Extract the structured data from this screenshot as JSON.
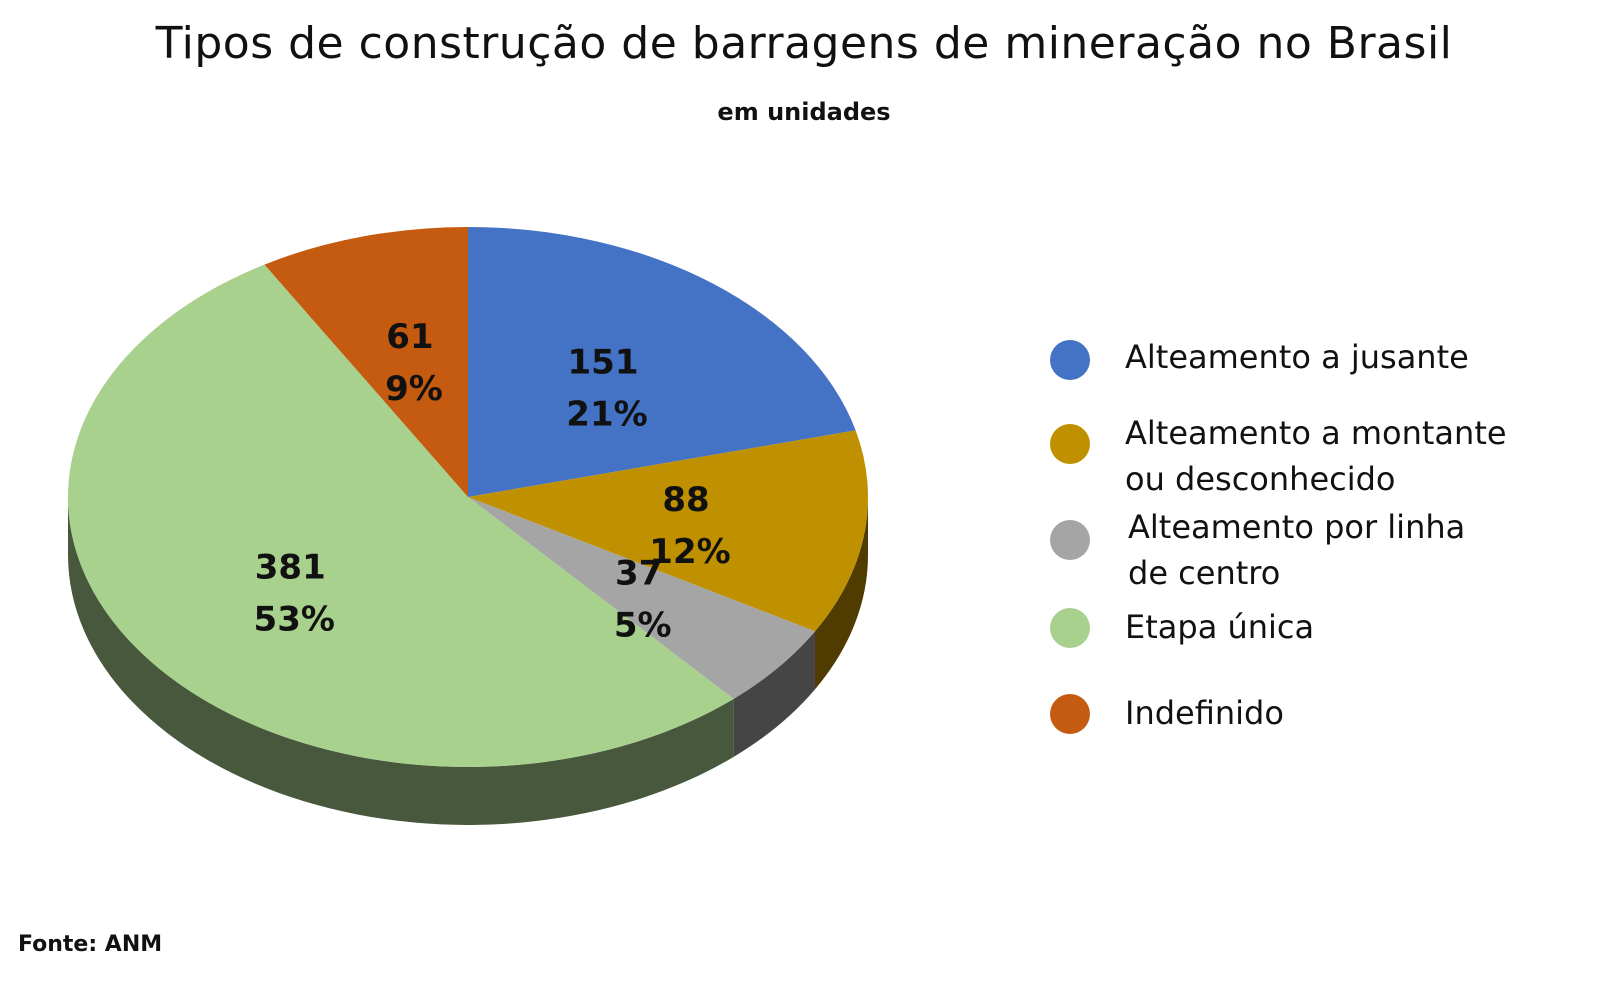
{
  "chart_data": {
    "type": "pie",
    "title": "Tipos de construção de barragens de mineração no Brasil",
    "subtitle": "em unidades",
    "source": "Fonte: ANM",
    "legend_position": "right",
    "slices": [
      {
        "name": "Alteamento a jusante",
        "value": 151,
        "percent_label": "21%",
        "color": "#4472C4"
      },
      {
        "name": "Alteamento a montante ou desconhecido",
        "value": 88,
        "percent_label": "12%",
        "color": "#BF9000"
      },
      {
        "name": "Alteamento por linha de centro",
        "value": 37,
        "percent_label": "5%",
        "color": "#A5A5A5"
      },
      {
        "name": "Etapa única",
        "value": 381,
        "percent_label": "53%",
        "color": "#A9D18E"
      },
      {
        "name": "Indefinido",
        "value": 61,
        "percent_label": "9%",
        "color": "#C55A11"
      }
    ]
  },
  "legend": {
    "items": [
      {
        "label": "Alteamento a jusante",
        "color": "#4472C4"
      },
      {
        "label": "Alteamento a montante\nou desconhecido",
        "color": "#BF9000"
      },
      {
        "label": "Alteamento por linha\nde centro",
        "color": "#A5A5A5"
      },
      {
        "label": "Etapa única",
        "color": "#A9D18E"
      },
      {
        "label": "Indefinido",
        "color": "#C55A11"
      }
    ]
  }
}
